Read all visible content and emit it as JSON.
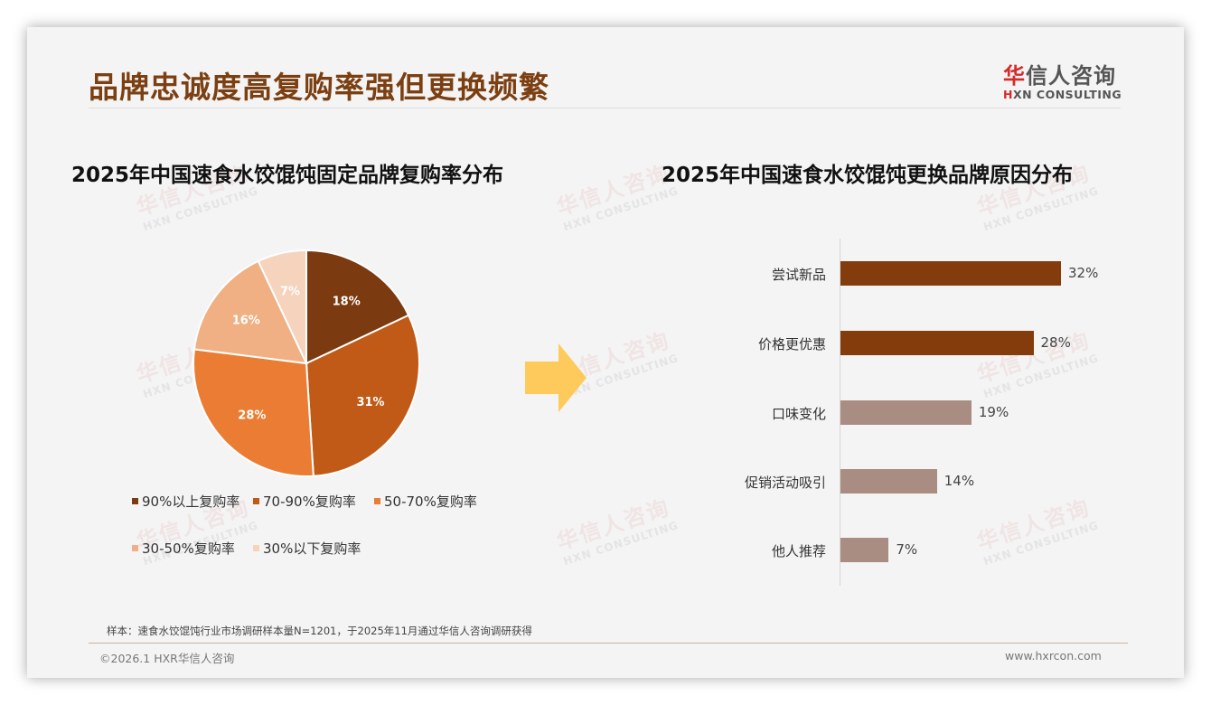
{
  "header": {
    "title": "品牌忠诚度高复购率强但更换频繁",
    "logo_cn_accent": "华",
    "logo_cn_rest": "信人咨询",
    "logo_en_accent": "H",
    "logo_en_rest": "XN CONSULTING"
  },
  "watermark": {
    "cn": "华信人咨询",
    "en": "HXN CONSULTING"
  },
  "colors": {
    "title": "#7b3f12",
    "pie": [
      "#7b3a10",
      "#c05a16",
      "#ea7d33",
      "#f0b083",
      "#f6d3bd"
    ],
    "bar_top": "#843c0c",
    "bar_other": "#a98c82",
    "arrow": "#ffca5c"
  },
  "left_chart": {
    "title": "2025年中国速食水饺馄饨固定品牌复购率分布"
  },
  "right_chart": {
    "title": "2025年中国速食水饺馄饨更换品牌原因分布"
  },
  "chart_data": [
    {
      "type": "pie",
      "title": "2025年中国速食水饺馄饨固定品牌复购率分布",
      "categories": [
        "90%以上复购率",
        "70-90%复购率",
        "50-70%复购率",
        "30-50%复购率",
        "30%以下复购率"
      ],
      "values": [
        18,
        31,
        28,
        16,
        7
      ],
      "labels": [
        "18%",
        "31%",
        "28%",
        "16%",
        "7%"
      ],
      "legend_position": "bottom"
    },
    {
      "type": "bar",
      "orientation": "horizontal",
      "title": "2025年中国速食水饺馄饨更换品牌原因分布",
      "categories": [
        "尝试新品",
        "价格更优惠",
        "口味变化",
        "促销活动吸引",
        "他人推荐"
      ],
      "values": [
        32,
        28,
        19,
        14,
        7
      ],
      "labels": [
        "32%",
        "28%",
        "19%",
        "14%",
        "7%"
      ],
      "xlabel": "",
      "ylabel": "",
      "grid": false
    }
  ],
  "footer": {
    "note": "样本：速食水饺馄饨行业市场调研样本量N=1201，于2025年11月通过华信人咨询调研获得",
    "copyright": "©2026.1 HXR华信人咨询",
    "website": "www.hxrcon.com"
  }
}
